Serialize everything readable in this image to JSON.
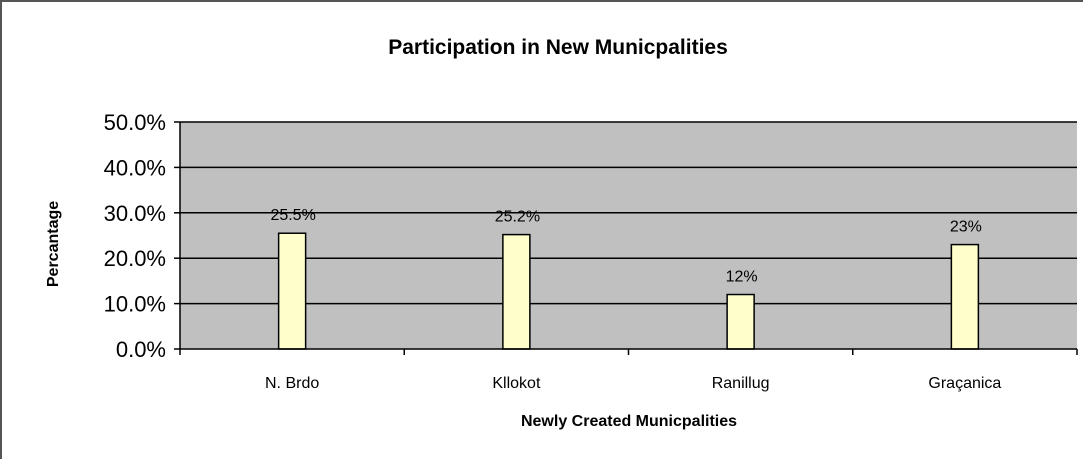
{
  "chart_data": {
    "type": "bar",
    "title": "Participation in New Municpalities",
    "xlabel": "Newly Created Municpalities",
    "ylabel": "Percantage",
    "categories": [
      "N. Brdo",
      "Kllokot",
      "Ranillug",
      "Graçanica"
    ],
    "values": [
      25.5,
      25.2,
      12,
      23
    ],
    "data_labels": [
      "25.5%",
      "25.2%",
      "12%",
      "23%"
    ],
    "ylim": [
      0,
      50
    ],
    "yticks": [
      0,
      10,
      20,
      30,
      40,
      50
    ],
    "ytick_labels": [
      "0.0%",
      "10.0%",
      "20.0%",
      "30.0%",
      "40.0%",
      "50.0%"
    ],
    "grid": true,
    "legend": "none",
    "colors": {
      "plot_background": "#c0c0c0",
      "bar_fill": "#ffffcc",
      "bar_stroke": "#000000",
      "gridline": "#000000"
    }
  }
}
